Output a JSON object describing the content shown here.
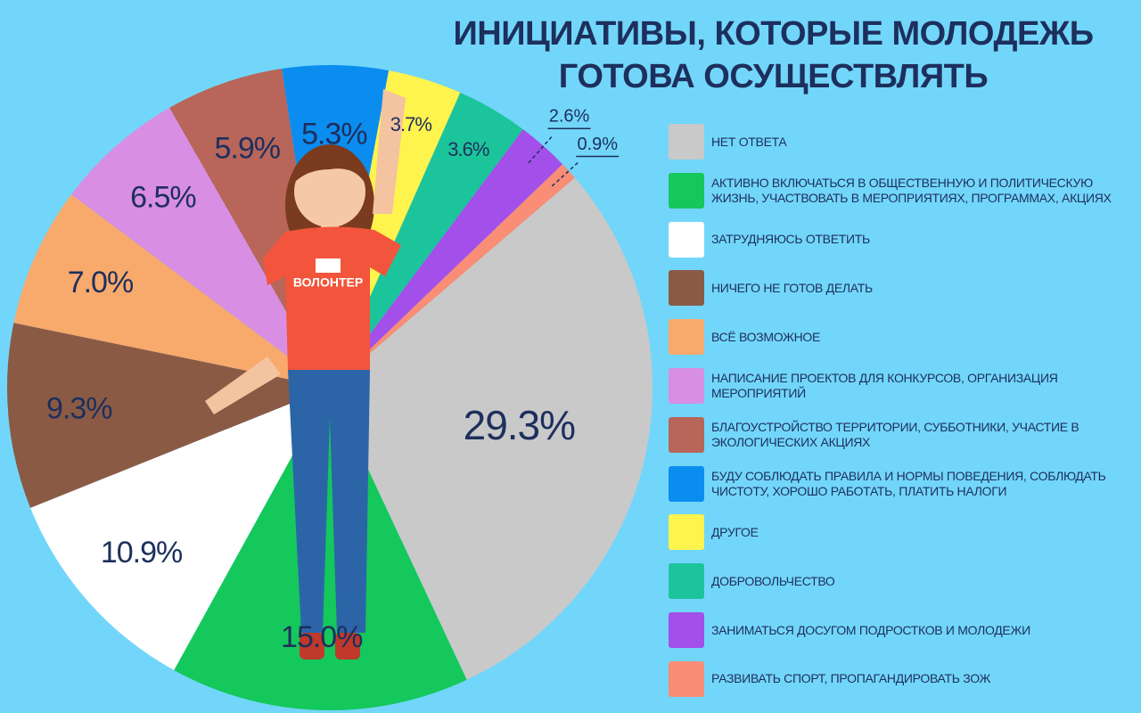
{
  "chart_data": {
    "type": "pie",
    "title": "ИНИЦИАТИВЫ, КОТОРЫЕ МОЛОДЕЖЬ ГОТОВА ОСУЩЕСТВЛЯТЬ",
    "categories": [
      "НЕТ ОТВЕТА",
      "АКТИВНО ВКЛЮЧАТЬСЯ В ОБЩЕСТВЕННУЮ И ПОЛИТИЧЕСКУЮ ЖИЗНЬ, УЧАСТВОВАТЬ В МЕРОПРИЯТИЯХ, ПРОГРАММАХ, АКЦИЯХ",
      "ЗАТРУДНЯЮСЬ ОТВЕТИТЬ",
      "НИЧЕГО НЕ ГОТОВ ДЕЛАТЬ",
      "ВСЁ ВОЗМОЖНОЕ",
      "НАПИСАНИЕ ПРОЕКТОВ ДЛЯ КОНКУРСОВ, ОРГАНИЗАЦИЯ МЕРОПРИЯТИЙ",
      "БЛАГОУСТРОЙСТВО ТЕРРИТОРИИ, СУББОТНИКИ, УЧАСТИЕ В ЭКОЛОГИЧЕСКИХ АКЦИЯХ",
      "БУДУ СОБЛЮДАТЬ ПРАВИЛА И НОРМЫ ПОВЕДЕНИЯ, СОБЛЮДАТЬ ЧИСТОТУ, ХОРОШО РАБОТАТЬ, ПЛАТИТЬ НАЛОГИ",
      "ДРУГОЕ",
      "ДОБРОВОЛЬЧЕСТВО",
      "ЗАНИМАТЬСЯ ДОСУГОМ ПОДРОСТКОВ И МОЛОДЕЖИ",
      "РАЗВИВАТЬ СПОРТ, ПРОПАГАНДИРОВАТЬ ЗОЖ"
    ],
    "values": [
      29.3,
      15.0,
      10.9,
      9.3,
      7.0,
      6.5,
      5.9,
      5.3,
      3.7,
      3.6,
      2.6,
      0.9
    ],
    "value_labels": [
      "29.3%",
      "15.0%",
      "10.9%",
      "9.3%",
      "7.0%",
      "6.5%",
      "5.9%",
      "5.3%",
      "3.7%",
      "3.6%",
      "2.6%",
      "0.9%"
    ],
    "colors": [
      "#c9c9c9",
      "#14c85c",
      "#ffffff",
      "#8b5a45",
      "#f8a96c",
      "#d88ee3",
      "#b8655a",
      "#0b8df0",
      "#fff34e",
      "#1cc49b",
      "#a34fe9",
      "#f98d75"
    ]
  },
  "illustration": {
    "shirt_text": "ВОЛОНТЕР"
  }
}
